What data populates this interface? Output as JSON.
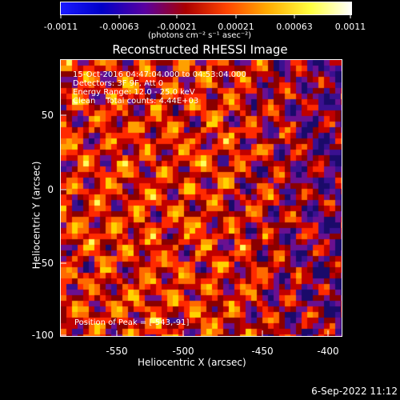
{
  "colorbar": {
    "ticks": [
      "-0.0011",
      "-0.00063",
      "-0.00021",
      "0.00021",
      "0.00063",
      "0.0011"
    ],
    "units": "(photons cm⁻² s⁻¹ asec⁻²)",
    "colors": [
      "#1a1aff",
      "#0000c8",
      "#5a00a0",
      "#aa0000",
      "#ff4400",
      "#ffaa00",
      "#ffff40",
      "#ffffff"
    ]
  },
  "title": "Reconstructed RHESSI Image",
  "annotations": {
    "time": "15-Oct-2016 04:47:04.000 to 04:53:04.000",
    "detectors": "Detectors: 3F 9F, Att 0",
    "energy": "Energy Range: 12.0 - 25.0 keV",
    "clean": "Clean    Total counts: 4.44E+03",
    "peak": "Position of Peak = [-543,-91]"
  },
  "axes": {
    "xlabel": "Heliocentric X (arcsec)",
    "ylabel": "Heliocentric Y (arcsec)",
    "xticks": [
      "-550",
      "-500",
      "-450",
      "-400"
    ],
    "yticks": [
      "50",
      "0",
      "-50",
      "-100"
    ]
  },
  "footer": {
    "date": "6-Sep-2022 11:12"
  }
}
